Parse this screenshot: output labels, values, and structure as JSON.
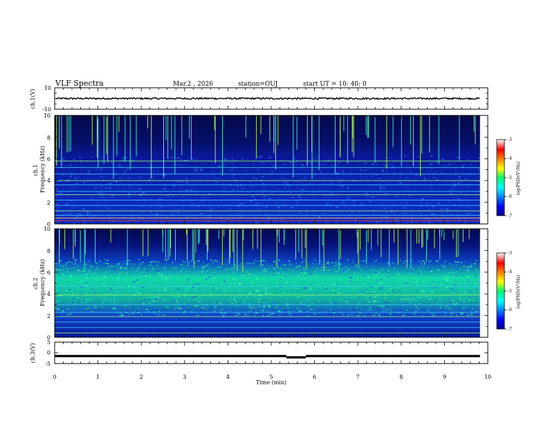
{
  "header": {
    "title": "VLF Spectra",
    "date": "Mar.2 , 2026",
    "station": "station=OUJ",
    "start": "start  UT =   10: 40: 0"
  },
  "chart_data": [
    {
      "id": "ch1-waveform",
      "type": "line",
      "ylabel": "ch.1(V)",
      "ylim": [
        -10,
        10
      ],
      "yticks": [
        "10",
        "-10"
      ],
      "xlim": [
        0,
        10
      ],
      "level": 0,
      "color": "#000000"
    },
    {
      "id": "ch1-spectrogram",
      "type": "heatmap",
      "ylabel": "ch.1\nFrequency (kHz)",
      "ylim": [
        0,
        10
      ],
      "yticks": [
        "0",
        "2",
        "4",
        "6",
        "8",
        "10"
      ],
      "xlim": [
        0,
        10
      ],
      "data_end_min": 9.82,
      "colorbar": {
        "label": "log(PSD)(V²/Hz)",
        "ticks": [
          "-3",
          "-4",
          "-5",
          "-6",
          "-7"
        ],
        "range": [
          -7,
          -3
        ]
      },
      "noise_band_khz": [
        0,
        6.3
      ],
      "horizontal_lines_khz": [
        0.3,
        0.55,
        0.8,
        1.2,
        1.7,
        2.2,
        2.7,
        3.0,
        3.6,
        4.0,
        4.6,
        5.2,
        5.8
      ]
    },
    {
      "id": "ch2-spectrogram",
      "type": "heatmap",
      "ylabel": "ch.2\nFrequency (kHz)",
      "ylim": [
        0,
        10
      ],
      "yticks": [
        "0",
        "2",
        "4",
        "6",
        "8",
        "10"
      ],
      "xlim": [
        0,
        10
      ],
      "data_end_min": 9.82,
      "colorbar": {
        "label": "log(PSD)(V²/Hz)",
        "ticks": [
          "-3",
          "-4",
          "-5",
          "-6",
          "-7"
        ],
        "range": [
          -7,
          -3
        ]
      },
      "noise_band_khz": [
        2.0,
        7.2
      ],
      "horizontal_lines_khz": [
        0.4,
        0.9,
        1.4,
        1.9,
        2.3,
        3.0,
        3.9,
        4.7
      ]
    },
    {
      "id": "ch3-waveform",
      "type": "line",
      "ylabel": "ch.3(V)",
      "ylim": [
        -5,
        5
      ],
      "yticks": [
        "5",
        "0",
        "-5"
      ],
      "xlim": [
        0,
        10
      ],
      "segments": [
        {
          "x": [
            0,
            5.35
          ],
          "y": -1.5
        },
        {
          "x": [
            5.35,
            5.8
          ],
          "y": -2.1
        },
        {
          "x": [
            5.8,
            9.82
          ],
          "y": -1.5
        }
      ],
      "color": "#000000"
    }
  ],
  "xaxis": {
    "label": "Time (min)",
    "ticks": [
      "0",
      "1",
      "2",
      "3",
      "4",
      "5",
      "6",
      "7",
      "8",
      "9",
      "10"
    ]
  }
}
